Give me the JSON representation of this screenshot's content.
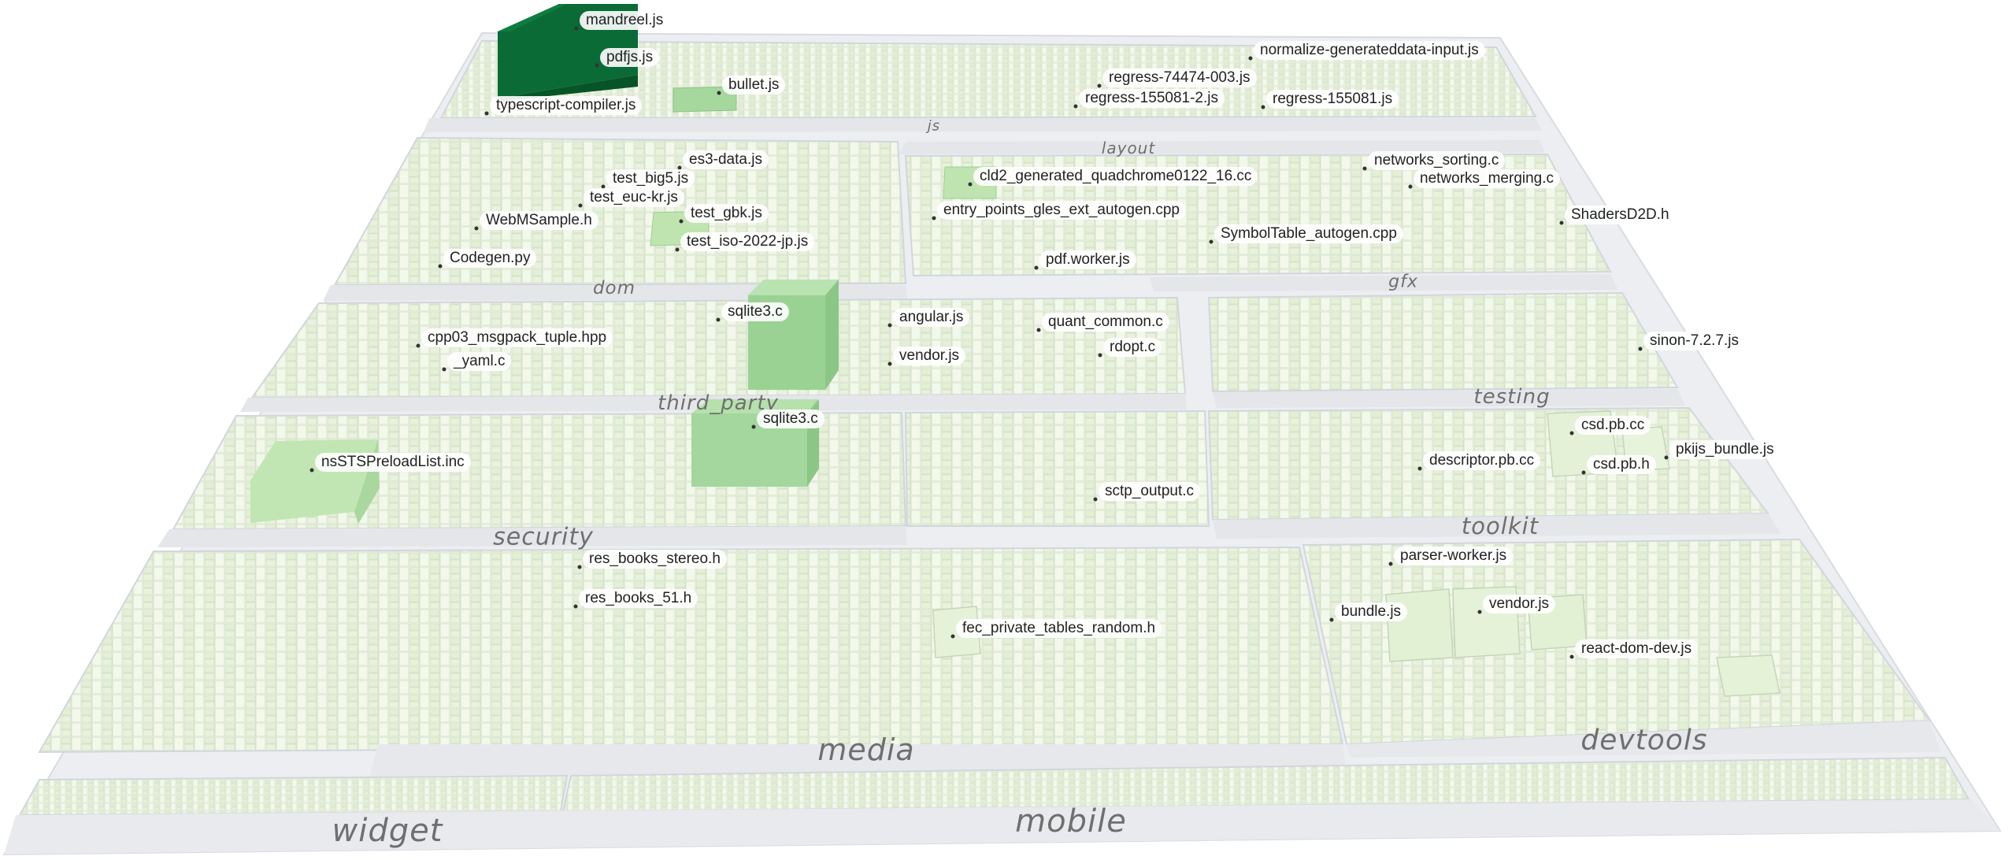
{
  "directories": [
    {
      "key": "js",
      "label": "js"
    },
    {
      "key": "layout",
      "label": "layout"
    },
    {
      "key": "dom",
      "label": "dom"
    },
    {
      "key": "gfx",
      "label": "gfx"
    },
    {
      "key": "third_party",
      "label": "third_party"
    },
    {
      "key": "testing",
      "label": "testing"
    },
    {
      "key": "security",
      "label": "security"
    },
    {
      "key": "toolkit",
      "label": "toolkit"
    },
    {
      "key": "media",
      "label": "media"
    },
    {
      "key": "devtools",
      "label": "devtools"
    },
    {
      "key": "widget",
      "label": "widget"
    },
    {
      "key": "mobile",
      "label": "mobile"
    }
  ],
  "files": [
    {
      "key": "mandreel",
      "label": "mandreel.js"
    },
    {
      "key": "pdfjs",
      "label": "pdfjs.js"
    },
    {
      "key": "bullet",
      "label": "bullet.js"
    },
    {
      "key": "typescript",
      "label": "typescript-compiler.js"
    },
    {
      "key": "normalize",
      "label": "normalize-generateddata-input.js"
    },
    {
      "key": "regress74474",
      "label": "regress-74474-003.js"
    },
    {
      "key": "regress1550812",
      "label": "regress-155081-2.js"
    },
    {
      "key": "regress155081",
      "label": "regress-155081.js"
    },
    {
      "key": "es3data",
      "label": "es3-data.js"
    },
    {
      "key": "testbig5",
      "label": "test_big5.js"
    },
    {
      "key": "testeuckr",
      "label": "test_euc-kr.js"
    },
    {
      "key": "testgbk",
      "label": "test_gbk.js"
    },
    {
      "key": "testiso",
      "label": "test_iso-2022-jp.js"
    },
    {
      "key": "webmsample",
      "label": "WebMSample.h"
    },
    {
      "key": "codegen",
      "label": "Codegen.py"
    },
    {
      "key": "cld2",
      "label": "cld2_generated_quadchrome0122_16.cc"
    },
    {
      "key": "entrypoints",
      "label": "entry_points_gles_ext_autogen.cpp"
    },
    {
      "key": "symboltable",
      "label": "SymbolTable_autogen.cpp"
    },
    {
      "key": "pdfworker",
      "label": "pdf.worker.js"
    },
    {
      "key": "netsorting",
      "label": "networks_sorting.c"
    },
    {
      "key": "netmerging",
      "label": "networks_merging.c"
    },
    {
      "key": "shadersd2d",
      "label": "ShadersD2D.h"
    },
    {
      "key": "sqlite1",
      "label": "sqlite3.c"
    },
    {
      "key": "angular",
      "label": "angular.js"
    },
    {
      "key": "vendor1",
      "label": "vendor.js"
    },
    {
      "key": "quantcommon",
      "label": "quant_common.c"
    },
    {
      "key": "rdopt",
      "label": "rdopt.c"
    },
    {
      "key": "cpp03",
      "label": "cpp03_msgpack_tuple.hpp"
    },
    {
      "key": "yaml",
      "label": "_yaml.c"
    },
    {
      "key": "sinon",
      "label": "sinon-7.2.7.js"
    },
    {
      "key": "sqlite2",
      "label": "sqlite3.c"
    },
    {
      "key": "nssts",
      "label": "nsSTSPreloadList.inc"
    },
    {
      "key": "sctp",
      "label": "sctp_output.c"
    },
    {
      "key": "csdpbcc",
      "label": "csd.pb.cc"
    },
    {
      "key": "descriptor",
      "label": "descriptor.pb.cc"
    },
    {
      "key": "csdpbh",
      "label": "csd.pb.h"
    },
    {
      "key": "pkijs",
      "label": "pkijs_bundle.js"
    },
    {
      "key": "resstereo",
      "label": "res_books_stereo.h"
    },
    {
      "key": "res51",
      "label": "res_books_51.h"
    },
    {
      "key": "fec",
      "label": "fec_private_tables_random.h"
    },
    {
      "key": "parserworker",
      "label": "parser-worker.js"
    },
    {
      "key": "bundle",
      "label": "bundle.js"
    },
    {
      "key": "vendor2",
      "label": "vendor.js"
    },
    {
      "key": "reactdom",
      "label": "react-dom-dev.js"
    }
  ],
  "colors": {
    "ground": "#eef0f3",
    "cell": "#eef6e4",
    "cell_edge": "#cfd8c4",
    "road": "#e6e8ec",
    "tower_dark": "#0b6b34",
    "tower_mid": "#9fd59b",
    "tower_light": "#d7eec6"
  }
}
